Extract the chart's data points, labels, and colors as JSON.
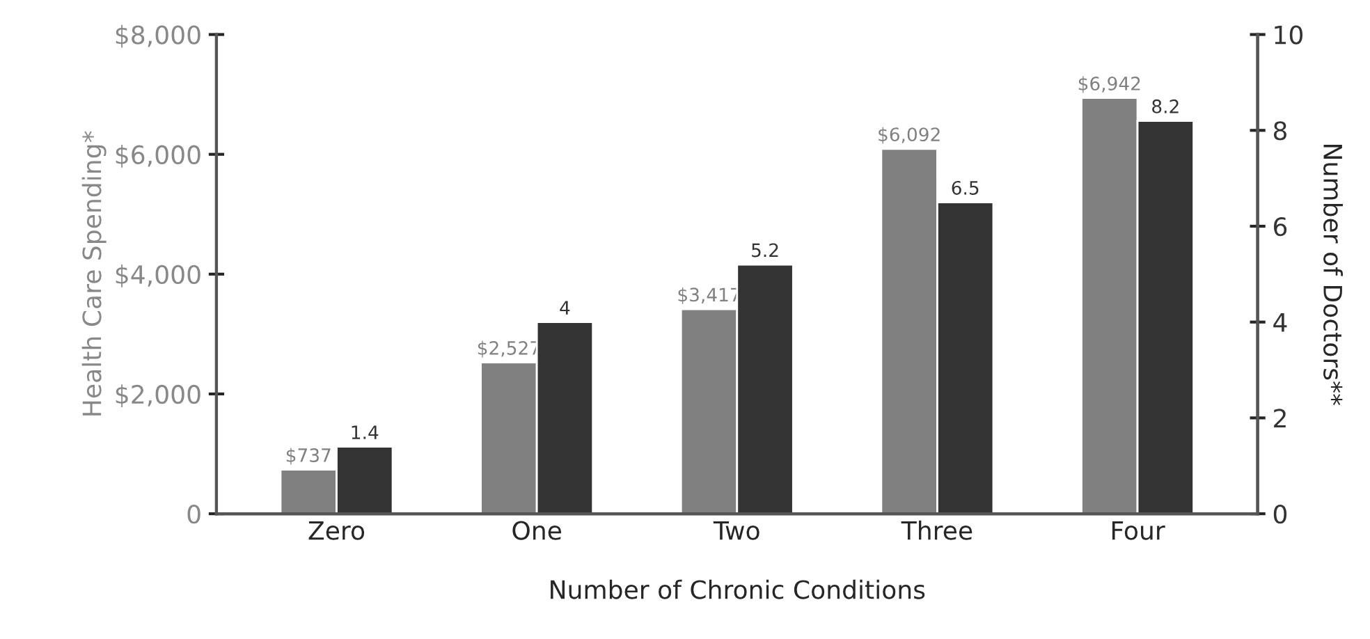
{
  "chart_data": {
    "type": "bar",
    "categories": [
      "Zero",
      "One",
      "Two",
      "Three",
      "Four"
    ],
    "xlabel": "Number of Chronic Conditions",
    "ylabel": "Health Care Spending*",
    "y2label": "Number of Doctors**",
    "series": [
      {
        "color": "#808080",
        "values": [
          737,
          2527,
          3417,
          6092,
          6942
        ],
        "value_labels": [
          "$737",
          "$2,527",
          "$3,417",
          "$6,092",
          "$6,942"
        ]
      },
      {
        "color": "#333333",
        "values": [
          1.4,
          4,
          5.2,
          6.5,
          8.2
        ],
        "value_labels": [
          "1.4",
          "4",
          "5.2",
          "6.5",
          "8.2"
        ],
        "axis": "y2"
      }
    ],
    "ylim": [
      0,
      8000
    ],
    "yticks": [
      {
        "value": 0,
        "label": "0"
      },
      {
        "value": 2000,
        "label": "$2,000"
      },
      {
        "value": 4000,
        "label": "$4,000"
      },
      {
        "value": 6000,
        "label": "$6,000"
      },
      {
        "value": 8000,
        "label": "$8,000"
      }
    ],
    "y2lim": [
      0,
      10
    ],
    "y2ticks": [
      0,
      2,
      4,
      6,
      8,
      10
    ],
    "grid": false
  }
}
